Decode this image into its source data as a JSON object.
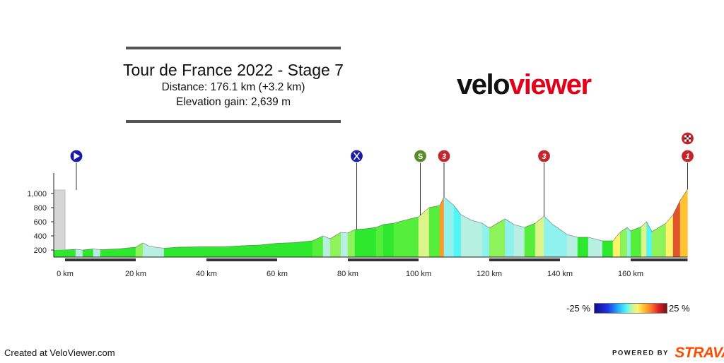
{
  "header": {
    "title": "Tour de France 2022 - Stage 7",
    "distance": "Distance: 176.1 km (+3.2 km)",
    "elevation_gain": "Elevation gain: 2,639 m"
  },
  "brand": {
    "part1": "velo",
    "part2": "viewer",
    "colors": {
      "dark": "#111111",
      "red": "#e2001a"
    }
  },
  "footer": {
    "created": "Created at VeloViewer.com",
    "powered_by": "POWERED BY",
    "strava": "STRAVA",
    "strava_color": "#fc4c02"
  },
  "legend": {
    "min_label": "-25 %",
    "max_label": "25 %",
    "gradient_colors": [
      "#0d0d8c",
      "#1e33e0",
      "#27b8ff",
      "#52f5f5",
      "#c6f6a0",
      "#fff36a",
      "#ffc233",
      "#ff7a2a",
      "#e1252a",
      "#7a0f12"
    ]
  },
  "markers": [
    {
      "type": "start",
      "km": 3.2,
      "icon": "play-icon",
      "color": "#1a1aa6"
    },
    {
      "type": "feed",
      "km": 82.5,
      "icon": "fork-knife-icon",
      "color": "#1a1aa6"
    },
    {
      "type": "sprint",
      "km": 100.5,
      "label": "S",
      "icon": "sprint-icon",
      "color": "#5a8a2a"
    },
    {
      "type": "climb",
      "km": 107.2,
      "label": "3",
      "icon": "category-3-icon",
      "color": "#c1272d"
    },
    {
      "type": "climb",
      "km": 135.5,
      "label": "3",
      "icon": "category-3-icon",
      "color": "#c1272d"
    },
    {
      "type": "finish",
      "km": 176.1,
      "label": "1",
      "icon": "category-1-icon",
      "color": "#c1272d",
      "finish_flag": true
    }
  ],
  "chart_data": {
    "type": "area",
    "x_label_unit": "km",
    "x_ticks": [
      0,
      20,
      40,
      60,
      80,
      100,
      120,
      140,
      160
    ],
    "x_tick_labels": [
      "0 km",
      "20 km",
      "40 km",
      "60 km",
      "80 km",
      "100 km",
      "120 km",
      "140 km",
      "160 km"
    ],
    "y_ticks": [
      200,
      400,
      600,
      800,
      1000
    ],
    "y_tick_labels": [
      "200",
      "400",
      "600",
      "800",
      "1,000"
    ],
    "xlim": [
      -3.2,
      176.1
    ],
    "ylim": [
      100,
      1100
    ],
    "neutral_zone_km": [
      -3.2,
      0
    ],
    "series": [
      {
        "values_km": [
          0,
          3,
          5,
          8,
          10,
          15,
          20,
          22,
          24,
          28,
          32,
          38,
          45,
          50,
          55,
          60,
          65,
          70,
          73,
          75,
          78,
          80,
          82,
          85,
          88,
          90,
          93,
          96,
          100,
          102,
          103,
          106,
          107.2,
          110,
          112,
          115,
          118,
          120,
          123,
          124.5,
          127,
          130,
          133,
          135.5,
          138,
          142,
          145,
          148,
          152,
          155,
          157,
          159,
          160,
          163,
          164.5,
          166,
          168,
          170,
          172,
          174,
          176.1
        ],
        "elevation_m": [
          200,
          210,
          200,
          215,
          205,
          215,
          240,
          300,
          250,
          225,
          240,
          245,
          245,
          260,
          270,
          295,
          305,
          330,
          400,
          360,
          450,
          440,
          490,
          500,
          520,
          560,
          580,
          620,
          670,
          760,
          800,
          830,
          950,
          830,
          700,
          620,
          580,
          510,
          600,
          640,
          560,
          520,
          580,
          680,
          560,
          420,
          380,
          380,
          330,
          330,
          450,
          520,
          470,
          530,
          600,
          460,
          520,
          580,
          700,
          900,
          1060
        ]
      }
    ]
  }
}
